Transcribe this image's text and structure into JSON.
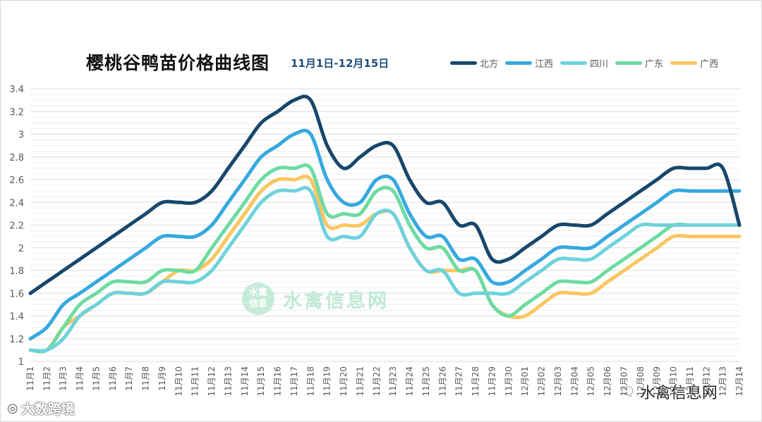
{
  "chart_data": {
    "type": "line",
    "title": "樱桃谷鸭苗价格曲线图",
    "subtitle": "11月1日-12月15日",
    "ylim": [
      1,
      3.4
    ],
    "yticks": [
      "1",
      "1.2",
      "1.4",
      "1.6",
      "1.8",
      "2",
      "2.2",
      "2.4",
      "2.6",
      "2.8",
      "3",
      "3.2",
      "3.4"
    ],
    "grid": true,
    "legend_position": "top-right",
    "categories": [
      "11月1",
      "11月2",
      "11月3",
      "11月4",
      "11月5",
      "11月6",
      "11月7",
      "11月8",
      "11月9",
      "11月10",
      "11月11",
      "11月12",
      "11月13",
      "11月14",
      "11月15",
      "11月16",
      "11月17",
      "11月18",
      "11月19",
      "11月20",
      "11月21",
      "11月22",
      "11月23",
      "11月24",
      "11月25",
      "11月26",
      "11月27",
      "11月28",
      "11月29",
      "11月30",
      "12月01",
      "12月02",
      "12月03",
      "12月04",
      "12月05",
      "12月06",
      "12月07",
      "12月08",
      "12月09",
      "12月10",
      "12月11",
      "12月12",
      "12月13",
      "12月14"
    ],
    "series": [
      {
        "name": "北方",
        "color": "#17476b",
        "values": [
          1.6,
          1.7,
          1.8,
          1.9,
          2.0,
          2.1,
          2.2,
          2.3,
          2.4,
          2.4,
          2.4,
          2.5,
          2.7,
          2.9,
          3.1,
          3.2,
          3.3,
          3.3,
          2.9,
          2.7,
          2.8,
          2.9,
          2.9,
          2.6,
          2.4,
          2.4,
          2.2,
          2.2,
          1.9,
          1.9,
          2.0,
          2.1,
          2.2,
          2.2,
          2.2,
          2.3,
          2.4,
          2.5,
          2.6,
          2.7,
          2.7,
          2.7,
          2.7,
          2.2
        ]
      },
      {
        "name": "江西",
        "color": "#36a9e0",
        "values": [
          1.2,
          1.3,
          1.5,
          1.6,
          1.7,
          1.8,
          1.9,
          2.0,
          2.1,
          2.1,
          2.1,
          2.2,
          2.4,
          2.6,
          2.8,
          2.9,
          3.0,
          3.0,
          2.6,
          2.4,
          2.4,
          2.6,
          2.6,
          2.3,
          2.1,
          2.1,
          1.9,
          1.9,
          1.7,
          1.7,
          1.8,
          1.9,
          2.0,
          2.0,
          2.0,
          2.1,
          2.2,
          2.3,
          2.4,
          2.5,
          2.5,
          2.5,
          2.5,
          2.5
        ]
      },
      {
        "name": "四川",
        "color": "#6fd2db",
        "values": [
          1.1,
          1.1,
          1.2,
          1.4,
          1.5,
          1.6,
          1.6,
          1.6,
          1.7,
          1.7,
          1.7,
          1.8,
          2.0,
          2.2,
          2.4,
          2.5,
          2.5,
          2.5,
          2.1,
          2.1,
          2.1,
          2.3,
          2.3,
          2.0,
          1.8,
          1.8,
          1.6,
          1.6,
          1.6,
          1.6,
          1.7,
          1.8,
          1.9,
          1.9,
          1.9,
          2.0,
          2.1,
          2.2,
          2.2,
          2.2,
          2.2,
          2.2,
          2.2,
          2.2
        ]
      },
      {
        "name": "广东",
        "color": "#6ddba2",
        "values": [
          1.1,
          1.1,
          1.3,
          1.5,
          1.6,
          1.7,
          1.7,
          1.7,
          1.8,
          1.8,
          1.8,
          2.0,
          2.2,
          2.4,
          2.6,
          2.7,
          2.7,
          2.7,
          2.3,
          2.3,
          2.3,
          2.5,
          2.5,
          2.2,
          2.0,
          2.0,
          1.8,
          1.8,
          1.5,
          1.4,
          1.5,
          1.6,
          1.7,
          1.7,
          1.7,
          1.8,
          1.9,
          2.0,
          2.1,
          2.2,
          2.2,
          2.2,
          2.2,
          2.2
        ]
      },
      {
        "name": "广西",
        "color": "#f9c660",
        "values": [
          1.1,
          1.1,
          1.3,
          1.4,
          1.5,
          1.6,
          1.6,
          1.6,
          1.7,
          1.8,
          1.8,
          1.9,
          2.1,
          2.3,
          2.5,
          2.6,
          2.6,
          2.6,
          2.2,
          2.2,
          2.2,
          2.3,
          2.3,
          2.0,
          1.8,
          1.8,
          1.8,
          1.8,
          1.5,
          1.4,
          1.4,
          1.5,
          1.6,
          1.6,
          1.6,
          1.7,
          1.8,
          1.9,
          2.0,
          2.1,
          2.1,
          2.1,
          2.1,
          2.1
        ]
      }
    ]
  },
  "watermark": {
    "badge_line1": "水禽",
    "badge_line2": "信息",
    "center_text": "水禽信息网",
    "corner_text": "水禽信息网",
    "corner_icon": "wechat-icon",
    "bottom_left_text": "大数跨境",
    "bottom_left_icon": "weibo-icon"
  }
}
